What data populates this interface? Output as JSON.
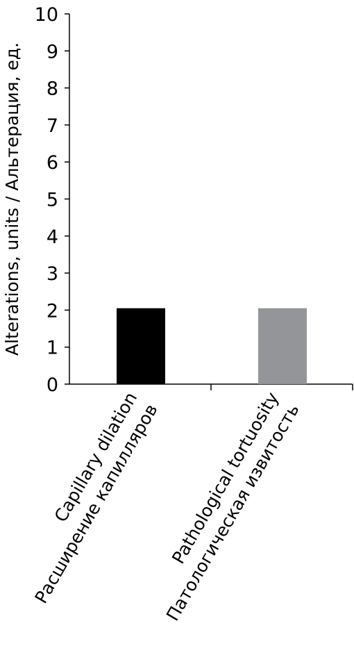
{
  "chart_data": {
    "type": "bar",
    "categories": [
      [
        "Capillary dilation",
        "Расширение капилляров"
      ],
      [
        "Pathological tortuosity",
        "Патологическая извитость"
      ]
    ],
    "values": [
      2.05,
      2.05
    ],
    "bar_colors": [
      "#000000",
      "#939598"
    ],
    "title": "",
    "xlabel": "",
    "ylabel": "Alterations, units / Альтерация, ед.",
    "ylim": [
      0,
      10
    ],
    "yticks": [
      "0",
      "1",
      "2",
      "3",
      "4",
      "5",
      "6",
      "7",
      "8",
      "9",
      "10"
    ],
    "grid": false,
    "legend": "none"
  }
}
